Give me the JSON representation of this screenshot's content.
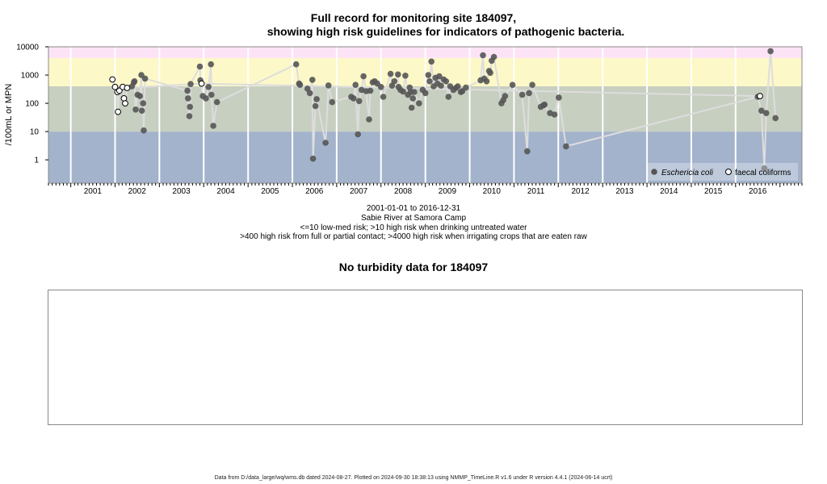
{
  "chart_data": [
    {
      "type": "scatter",
      "title_line1": "Full record for monitoring site 184097,",
      "title_line2": "showing high risk guidelines for indicators of pathogenic bacteria.",
      "ylabel": "/100mL or MPN",
      "y_scale": "log",
      "ylim": [
        0.15,
        10000
      ],
      "y_ticks": [
        "1",
        "10",
        "100",
        "1000",
        "10000"
      ],
      "y_tick_values": [
        1,
        10,
        100,
        1000,
        10000
      ],
      "x_range": [
        "2000-07-01",
        "2017-07-01"
      ],
      "x_ticks": [
        "2001",
        "2002",
        "2003",
        "2004",
        "2005",
        "2006",
        "2007",
        "2008",
        "2009",
        "2010",
        "2011",
        "2012",
        "2013",
        "2014",
        "2015",
        "2016"
      ],
      "grid": true,
      "risk_bands": [
        {
          "from": 0.15,
          "to": 10,
          "color": "#a3b3cc"
        },
        {
          "from": 10,
          "to": 400,
          "color": "#c7cfc1"
        },
        {
          "from": 400,
          "to": 4000,
          "color": "#fdf8c7"
        },
        {
          "from": 4000,
          "to": 10000,
          "color": "#fde3f6"
        }
      ],
      "legend_position": "bottom-right",
      "series": [
        {
          "name": "Eschericia coli",
          "marker": "filled-circle",
          "color": "#555555",
          "line_color": "#dddddd",
          "points": [
            [
              "2002-05-20",
              400
            ],
            [
              "2002-06-05",
              550
            ],
            [
              "2002-06-10",
              600
            ],
            [
              "2002-06-20",
              60
            ],
            [
              "2002-07-05",
              200
            ],
            [
              "2002-07-25",
              180
            ],
            [
              "2002-08-05",
              1000
            ],
            [
              "2002-08-10",
              55
            ],
            [
              "2002-08-20",
              100
            ],
            [
              "2002-08-25",
              11
            ],
            [
              "2002-09-05",
              750
            ],
            [
              "2003-08-20",
              280
            ],
            [
              "2003-08-25",
              150
            ],
            [
              "2003-09-05",
              35
            ],
            [
              "2003-09-10",
              75
            ],
            [
              "2003-09-15",
              480
            ],
            [
              "2003-12-01",
              2000
            ],
            [
              "2003-12-05",
              650
            ],
            [
              "2003-12-25",
              180
            ],
            [
              "2004-01-20",
              150
            ],
            [
              "2004-02-10",
              380
            ],
            [
              "2004-03-01",
              2400
            ],
            [
              "2004-03-05",
              200
            ],
            [
              "2004-03-20",
              16
            ],
            [
              "2004-04-20",
              110
            ],
            [
              "2006-02-01",
              2400
            ],
            [
              "2006-02-25",
              500
            ],
            [
              "2006-03-05",
              450
            ],
            [
              "2006-05-05",
              330
            ],
            [
              "2006-05-25",
              230
            ],
            [
              "2006-06-15",
              680
            ],
            [
              "2006-06-20",
              1.1
            ],
            [
              "2006-07-10",
              80
            ],
            [
              "2006-07-20",
              140
            ],
            [
              "2006-10-01",
              4
            ],
            [
              "2006-10-25",
              430
            ],
            [
              "2006-11-25",
              110
            ],
            [
              "2007-05-01",
              170
            ],
            [
              "2007-05-20",
              150
            ],
            [
              "2007-06-05",
              450
            ],
            [
              "2007-06-25",
              8
            ],
            [
              "2007-07-05",
              120
            ],
            [
              "2007-07-25",
              300
            ],
            [
              "2007-08-10",
              900
            ],
            [
              "2007-09-01",
              270
            ],
            [
              "2007-09-25",
              27
            ],
            [
              "2007-10-05",
              280
            ],
            [
              "2007-10-25",
              550
            ],
            [
              "2007-11-10",
              600
            ],
            [
              "2007-12-01",
              500
            ],
            [
              "2008-01-01",
              380
            ],
            [
              "2008-01-20",
              170
            ],
            [
              "2008-03-20",
              1100
            ],
            [
              "2008-04-01",
              420
            ],
            [
              "2008-04-20",
              600
            ],
            [
              "2008-05-20",
              1050
            ],
            [
              "2008-05-25",
              380
            ],
            [
              "2008-06-10",
              300
            ],
            [
              "2008-07-01",
              260
            ],
            [
              "2008-07-20",
              950
            ],
            [
              "2008-08-10",
              200
            ],
            [
              "2008-08-25",
              360
            ],
            [
              "2008-09-01",
              250
            ],
            [
              "2008-09-10",
              70
            ],
            [
              "2008-09-20",
              150
            ],
            [
              "2008-10-01",
              250
            ],
            [
              "2008-11-10",
              100
            ],
            [
              "2008-12-10",
              300
            ],
            [
              "2009-01-01",
              230
            ],
            [
              "2009-01-25",
              1000
            ],
            [
              "2009-02-05",
              600
            ],
            [
              "2009-02-20",
              3000
            ],
            [
              "2009-03-10",
              400
            ],
            [
              "2009-03-25",
              800
            ],
            [
              "2009-04-10",
              500
            ],
            [
              "2009-04-25",
              900
            ],
            [
              "2009-05-10",
              420
            ],
            [
              "2009-06-01",
              700
            ],
            [
              "2009-06-20",
              600
            ],
            [
              "2009-07-10",
              170
            ],
            [
              "2009-07-25",
              400
            ],
            [
              "2009-08-20",
              300
            ],
            [
              "2009-09-10",
              350
            ],
            [
              "2009-09-25",
              400
            ],
            [
              "2009-10-20",
              250
            ],
            [
              "2009-11-01",
              270
            ],
            [
              "2009-12-01",
              360
            ],
            [
              "2010-04-01",
              650
            ],
            [
              "2010-04-20",
              5000
            ],
            [
              "2010-05-01",
              750
            ],
            [
              "2010-05-20",
              600
            ],
            [
              "2010-06-10",
              1400
            ],
            [
              "2010-06-20",
              1200
            ],
            [
              "2010-07-01",
              3200
            ],
            [
              "2010-07-20",
              4400
            ],
            [
              "2010-09-20",
              100
            ],
            [
              "2010-10-05",
              130
            ],
            [
              "2010-10-20",
              180
            ],
            [
              "2010-12-20",
              450
            ],
            [
              "2011-03-10",
              200
            ],
            [
              "2011-04-20",
              2
            ],
            [
              "2011-05-05",
              230
            ],
            [
              "2011-06-01",
              450
            ],
            [
              "2011-08-10",
              75
            ],
            [
              "2011-09-01",
              85
            ],
            [
              "2011-09-10",
              90
            ],
            [
              "2011-10-25",
              45
            ],
            [
              "2011-12-01",
              40
            ],
            [
              "2012-01-05",
              160
            ],
            [
              "2012-03-05",
              3
            ],
            [
              "2016-07-01",
              170
            ],
            [
              "2016-08-01",
              55
            ],
            [
              "2016-08-25",
              0.5
            ],
            [
              "2016-09-10",
              45
            ],
            [
              "2016-10-15",
              7000
            ],
            [
              "2016-11-25",
              30
            ]
          ]
        },
        {
          "name": "faecal coliforms",
          "marker": "open-circle",
          "color": "#000000",
          "line_color": "#dddddd",
          "points": [
            [
              "2001-12-10",
              700
            ],
            [
              "2002-01-01",
              380
            ],
            [
              "2002-01-20",
              250
            ],
            [
              "2002-01-25",
              50
            ],
            [
              "2002-02-05",
              280
            ],
            [
              "2002-03-05",
              380
            ],
            [
              "2002-03-15",
              150
            ],
            [
              "2002-03-25",
              100
            ],
            [
              "2002-04-10",
              350
            ],
            [
              "2003-12-15",
              500
            ],
            [
              "2016-07-20",
              180
            ]
          ]
        }
      ]
    },
    {
      "type": "line",
      "title": "No turbidity data for 184097",
      "series": []
    }
  ],
  "captions": {
    "line1": "2001-01-01 to 2016-12-31",
    "line2": "Sabie River at Samora Camp",
    "line3": "<=10 low-med risk; >10 high risk when drinking untreated water",
    "line4": ">400 high risk from full or partial contact; >4000 high risk when irrigating crops that are eaten raw"
  },
  "footer": "Data from D:/data_large/wq/wms.db dated 2024-08-27. Plotted on 2024-09-30 18:38:13 using NMMP_TimeLine.R v1.6 under R version 4.4.1 (2024-06-14 ucrt)"
}
